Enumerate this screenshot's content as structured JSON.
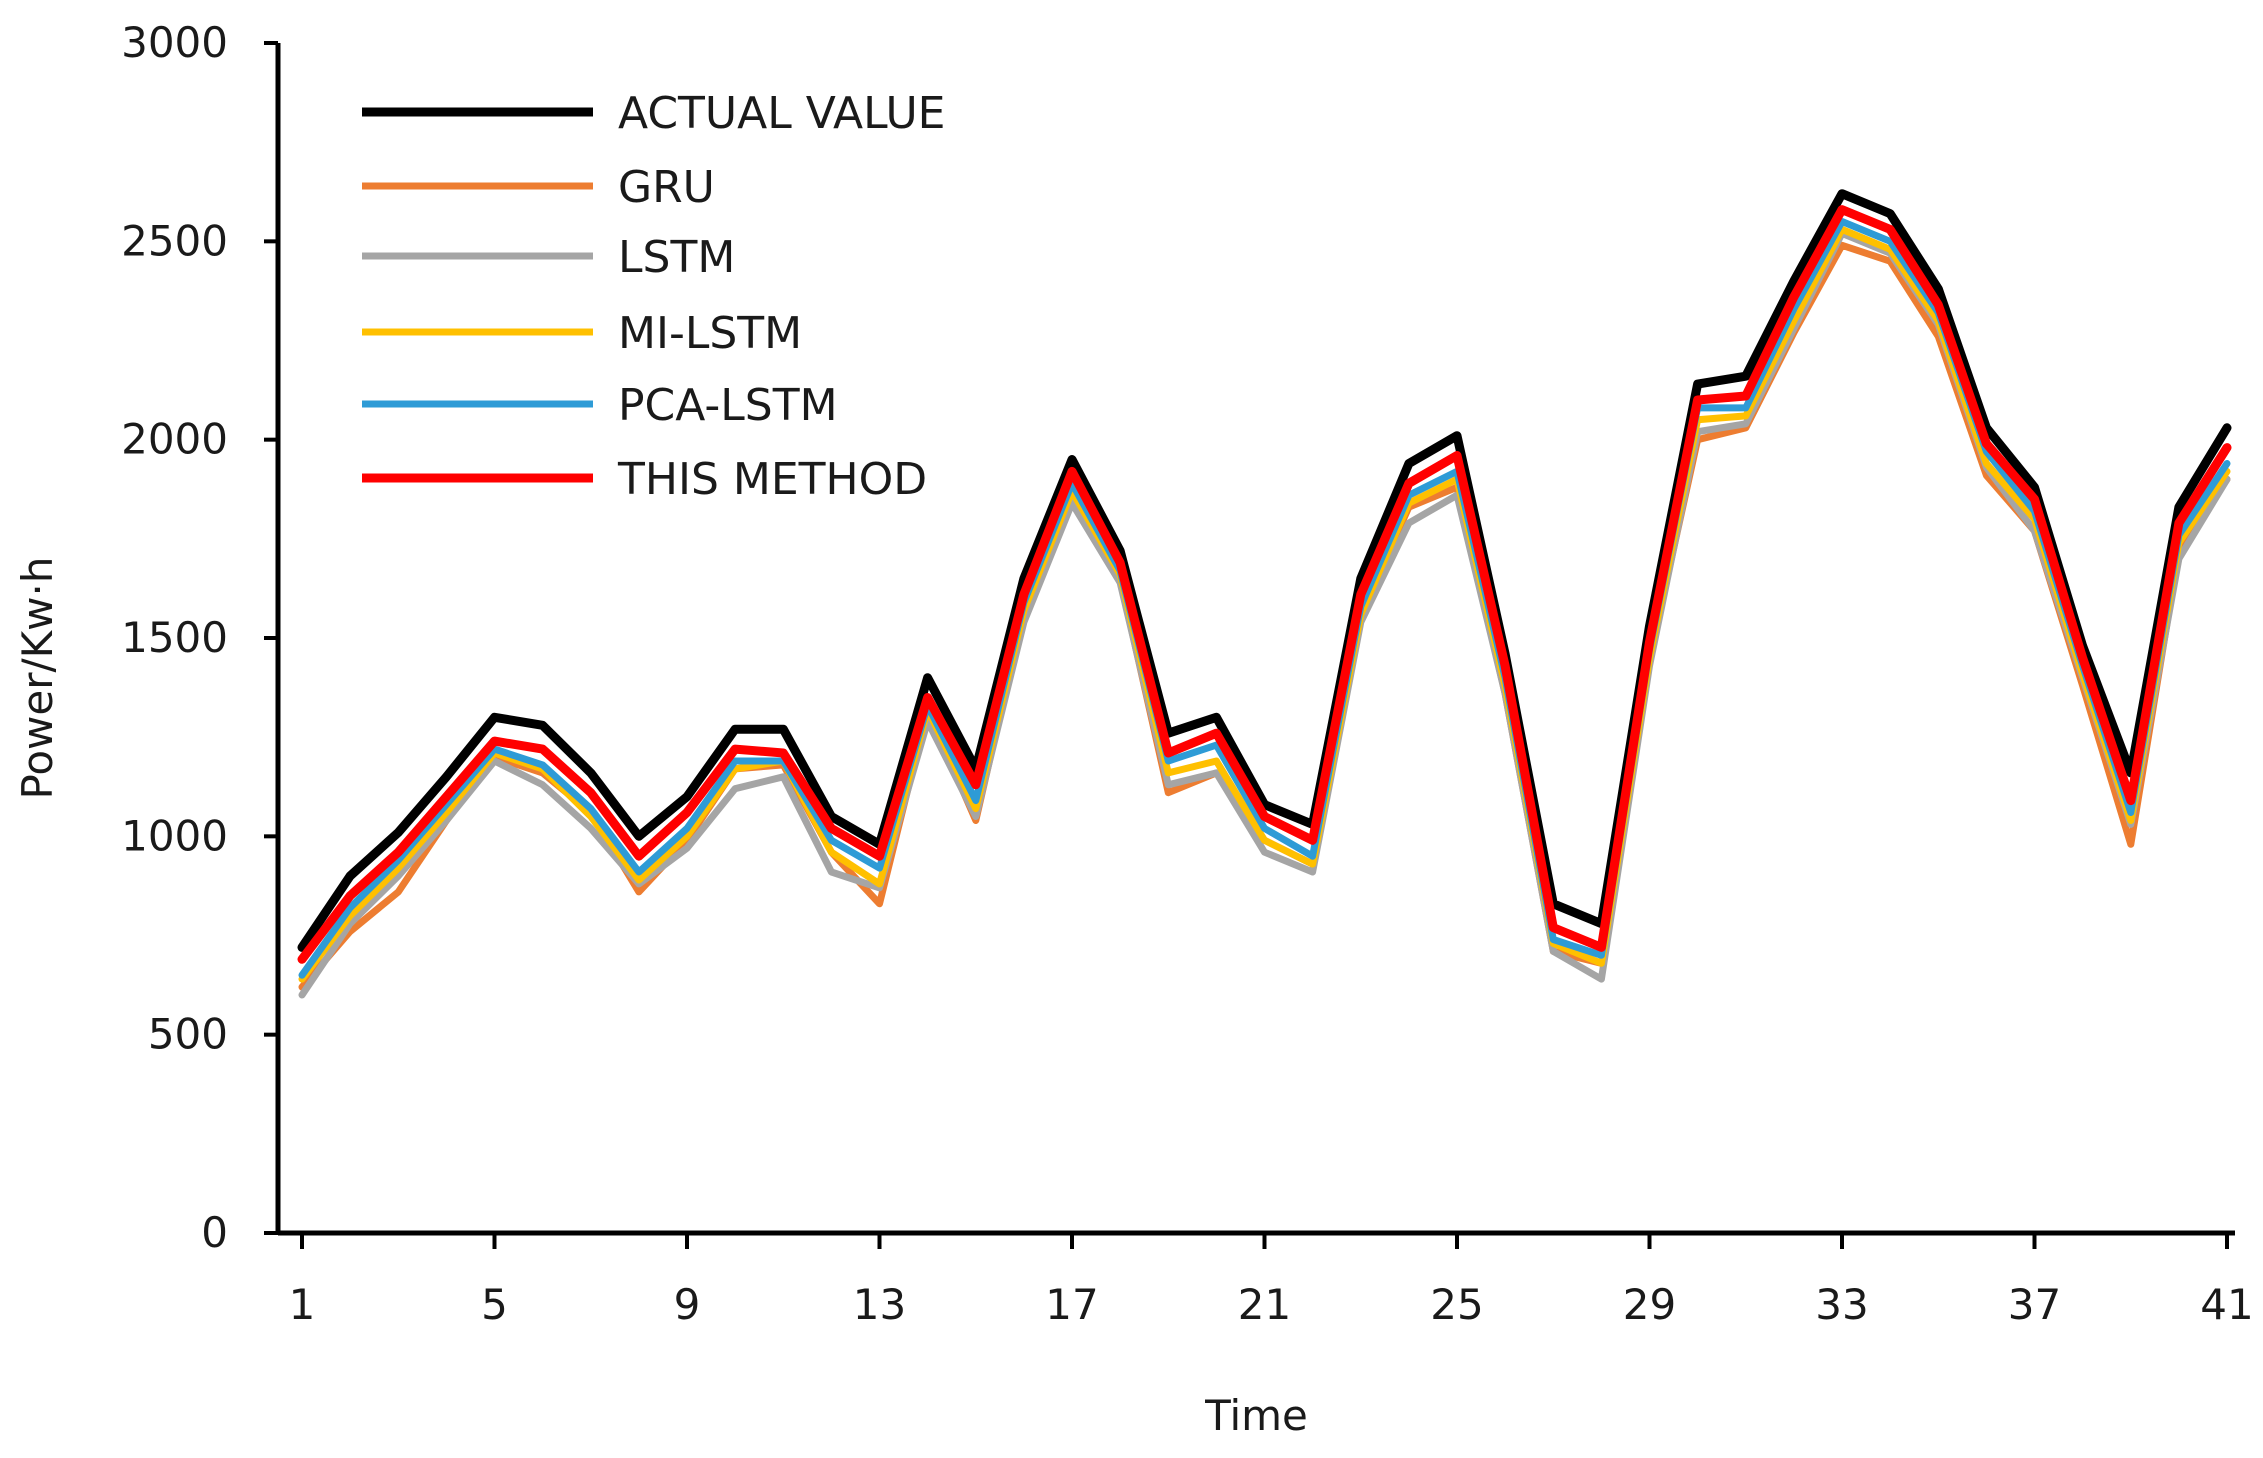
{
  "chart_data": {
    "type": "line",
    "title": "",
    "xlabel": "Time",
    "ylabel": "Power/Kw·h",
    "ylim": [
      0,
      3000
    ],
    "yticks": [
      0,
      500,
      1000,
      1500,
      2000,
      2500,
      3000
    ],
    "xlim": [
      1,
      41
    ],
    "xticks": [
      1,
      5,
      9,
      13,
      17,
      21,
      25,
      29,
      33,
      37,
      41
    ],
    "grid": false,
    "legend": "top-left",
    "x": [
      1,
      2,
      3,
      4,
      5,
      6,
      7,
      8,
      9,
      10,
      11,
      12,
      13,
      14,
      15,
      16,
      17,
      18,
      19,
      20,
      21,
      22,
      23,
      24,
      25,
      26,
      27,
      28,
      29,
      30,
      31,
      32,
      33,
      34,
      35,
      36,
      37,
      38,
      39,
      40,
      41
    ],
    "series": [
      {
        "name": "ACTUAL VALUE",
        "color": "#000000",
        "values": [
          720,
          900,
          1010,
          1150,
          1300,
          1280,
          1160,
          1000,
          1100,
          1270,
          1270,
          1050,
          980,
          1400,
          1170,
          1650,
          1950,
          1720,
          1260,
          1300,
          1080,
          1030,
          1650,
          1940,
          2010,
          1460,
          830,
          780,
          1530,
          2140,
          2160,
          2400,
          2620,
          2570,
          2380,
          2030,
          1880,
          1480,
          1160,
          1830,
          2030
        ]
      },
      {
        "name": "GRU",
        "color": "#ED7D31",
        "values": [
          620,
          760,
          860,
          1040,
          1200,
          1160,
          1060,
          860,
          990,
          1170,
          1180,
          960,
          830,
          1320,
          1040,
          1570,
          1870,
          1650,
          1110,
          1160,
          990,
          930,
          1560,
          1830,
          1880,
          1360,
          710,
          680,
          1450,
          2000,
          2030,
          2270,
          2490,
          2450,
          2260,
          1910,
          1770,
          1380,
          980,
          1720,
          1900
        ]
      },
      {
        "name": "LSTM",
        "color": "#A5A5A5",
        "values": [
          600,
          780,
          900,
          1040,
          1190,
          1130,
          1020,
          880,
          970,
          1120,
          1150,
          910,
          870,
          1290,
          1050,
          1540,
          1840,
          1640,
          1130,
          1160,
          960,
          910,
          1540,
          1790,
          1860,
          1360,
          710,
          640,
          1430,
          2020,
          2040,
          2280,
          2520,
          2470,
          2290,
          1930,
          1770,
          1400,
          1030,
          1700,
          1900
        ]
      },
      {
        "name": "MI-LSTM",
        "color": "#FFC000",
        "values": [
          640,
          800,
          920,
          1060,
          1210,
          1170,
          1050,
          890,
          1000,
          1170,
          1190,
          960,
          880,
          1320,
          1070,
          1570,
          1870,
          1660,
          1160,
          1190,
          990,
          930,
          1560,
          1840,
          1900,
          1380,
          730,
          680,
          1450,
          2050,
          2060,
          2300,
          2530,
          2480,
          2300,
          1940,
          1800,
          1410,
          1040,
          1740,
          1920
        ]
      },
      {
        "name": "PCA-LSTM",
        "color": "#2E9BD6",
        "values": [
          650,
          820,
          940,
          1080,
          1220,
          1180,
          1070,
          910,
          1020,
          1190,
          1190,
          990,
          920,
          1330,
          1090,
          1590,
          1890,
          1670,
          1190,
          1230,
          1020,
          950,
          1580,
          1860,
          1920,
          1400,
          740,
          700,
          1470,
          2080,
          2080,
          2330,
          2550,
          2500,
          2320,
          1970,
          1820,
          1430,
          1060,
          1760,
          1940
        ]
      },
      {
        "name": "THIS METHOD",
        "color": "#FF0000",
        "values": [
          690,
          850,
          960,
          1100,
          1240,
          1220,
          1110,
          950,
          1060,
          1220,
          1210,
          1020,
          950,
          1350,
          1130,
          1610,
          1920,
          1690,
          1210,
          1260,
          1050,
          990,
          1610,
          1890,
          1960,
          1430,
          770,
          720,
          1490,
          2100,
          2110,
          2360,
          2580,
          2530,
          2340,
          1990,
          1850,
          1450,
          1090,
          1790,
          1980
        ]
      }
    ]
  }
}
